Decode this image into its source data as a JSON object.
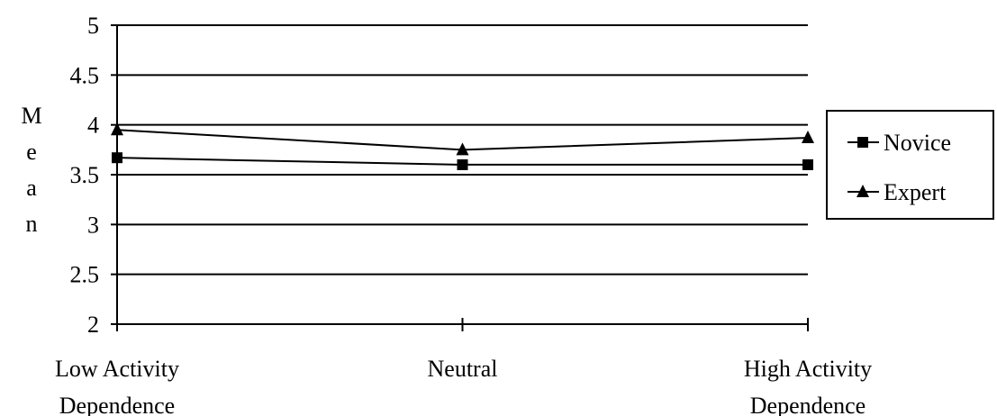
{
  "chart_data": {
    "type": "line",
    "categories": [
      [
        "Low Activity",
        "Dependence"
      ],
      [
        "Neutral"
      ],
      [
        "High Activity",
        "Dependence"
      ]
    ],
    "y_ticks": [
      "2",
      "2.5",
      "3",
      "3.5",
      "4",
      "4.5",
      "5"
    ],
    "ylim": [
      2,
      5
    ],
    "ylabel": "Mean",
    "series": [
      {
        "name": "Novice",
        "marker": "square",
        "values": [
          3.67,
          3.6,
          3.6
        ]
      },
      {
        "name": "Expert",
        "marker": "triangle",
        "values": [
          3.95,
          3.75,
          3.87
        ]
      }
    ],
    "grid": true,
    "legend": "right",
    "colors": {
      "line": "#000000",
      "background": "#ffffff"
    }
  }
}
